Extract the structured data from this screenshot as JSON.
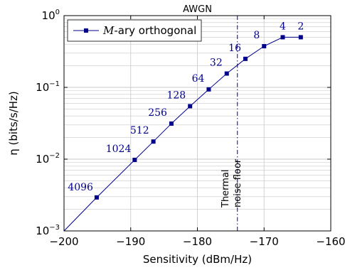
{
  "chart_data": {
    "type": "line",
    "title": "AWGN",
    "xlabel": "Sensitivity (dBm/Hz)",
    "ylabel": "η (bits/s/Hz)",
    "xlim": [
      -200,
      -160
    ],
    "ylim": [
      0.001,
      1
    ],
    "yscale": "log",
    "grid": true,
    "legend_position": "top-left",
    "xticks": [
      "−200",
      "−190",
      "−180",
      "−170",
      "−160"
    ],
    "yticks": [
      {
        "base": "10",
        "exp": "−3",
        "value": 0.001
      },
      {
        "base": "10",
        "exp": "−2",
        "value": 0.01
      },
      {
        "base": "10",
        "exp": "−1",
        "value": 0.1
      },
      {
        "base": "10",
        "exp": "0",
        "value": 1
      }
    ],
    "series": [
      {
        "name": "M-ary orthogonal",
        "name_italic": "M",
        "name_rest": "-ary orthogonal",
        "color": "#00008b",
        "points": [
          {
            "x": -195.1,
            "y": 0.00293,
            "label": "4096"
          },
          {
            "x": -189.4,
            "y": 0.00977,
            "label": "1024"
          },
          {
            "x": -186.6,
            "y": 0.0176,
            "label": "512"
          },
          {
            "x": -183.9,
            "y": 0.0313,
            "label": "256"
          },
          {
            "x": -181.1,
            "y": 0.0547,
            "label": "128"
          },
          {
            "x": -178.3,
            "y": 0.0938,
            "label": "64"
          },
          {
            "x": -175.6,
            "y": 0.156,
            "label": "32"
          },
          {
            "x": -172.8,
            "y": 0.25,
            "label": "16"
          },
          {
            "x": -170.0,
            "y": 0.375,
            "label": "8"
          },
          {
            "x": -167.2,
            "y": 0.5,
            "label": "4"
          },
          {
            "x": -164.5,
            "y": 0.5,
            "label": "2"
          }
        ]
      }
    ],
    "annotation": {
      "x": -174,
      "line1": "Thermal",
      "line2": "noise floor"
    }
  }
}
